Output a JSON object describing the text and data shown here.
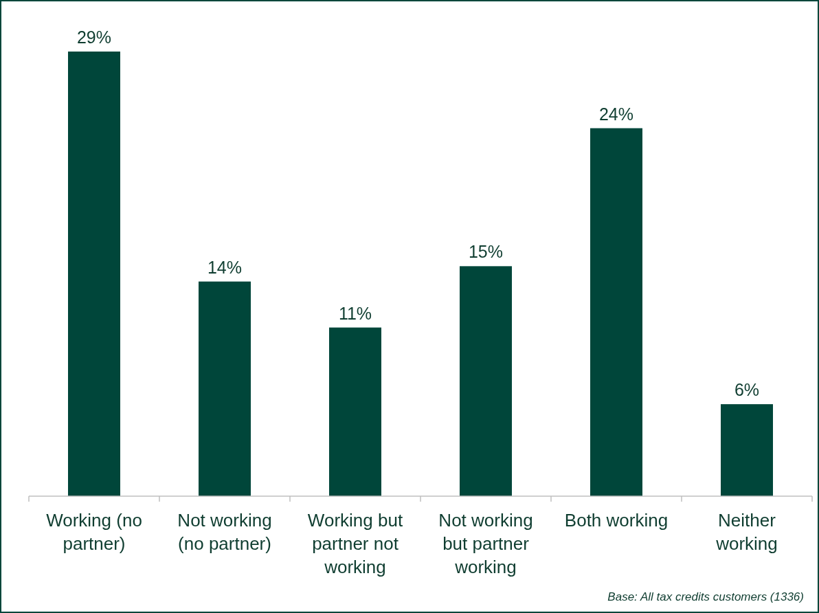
{
  "chart_data": {
    "type": "bar",
    "categories": [
      "Working (no partner)",
      "Not working (no partner)",
      "Working but partner not working",
      "Not working but partner working",
      "Both working",
      "Neither working"
    ],
    "values": [
      29,
      14,
      11,
      15,
      24,
      6
    ],
    "value_labels": [
      "29%",
      "14%",
      "11%",
      "15%",
      "24%",
      "6%"
    ],
    "color": "#00463a",
    "annotations": [
      "Base: All tax credits customers (1336)"
    ]
  }
}
